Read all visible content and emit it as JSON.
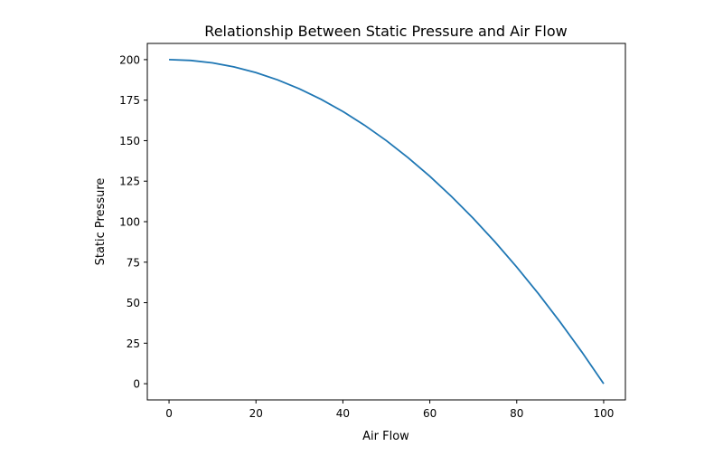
{
  "chart_data": {
    "type": "line",
    "title": "Relationship Between Static Pressure and Air Flow",
    "xlabel": "Air Flow",
    "ylabel": "Static Pressure",
    "xlim": [
      -5,
      105
    ],
    "ylim": [
      -10,
      210
    ],
    "xticks": [
      0,
      20,
      40,
      60,
      80,
      100
    ],
    "yticks": [
      0,
      25,
      50,
      75,
      100,
      125,
      150,
      175,
      200
    ],
    "grid": false,
    "series": [
      {
        "name": "Static Pressure",
        "color": "#1f77b4",
        "x": [
          0,
          5,
          10,
          15,
          20,
          25,
          30,
          35,
          40,
          45,
          50,
          55,
          60,
          65,
          70,
          75,
          80,
          85,
          90,
          95,
          100
        ],
        "y": [
          200,
          199.5,
          198,
          195.5,
          192,
          187.5,
          182,
          175.5,
          168,
          159.5,
          150,
          139.5,
          128,
          115.5,
          102,
          87.5,
          72,
          55.5,
          38,
          19.5,
          0
        ]
      }
    ]
  }
}
